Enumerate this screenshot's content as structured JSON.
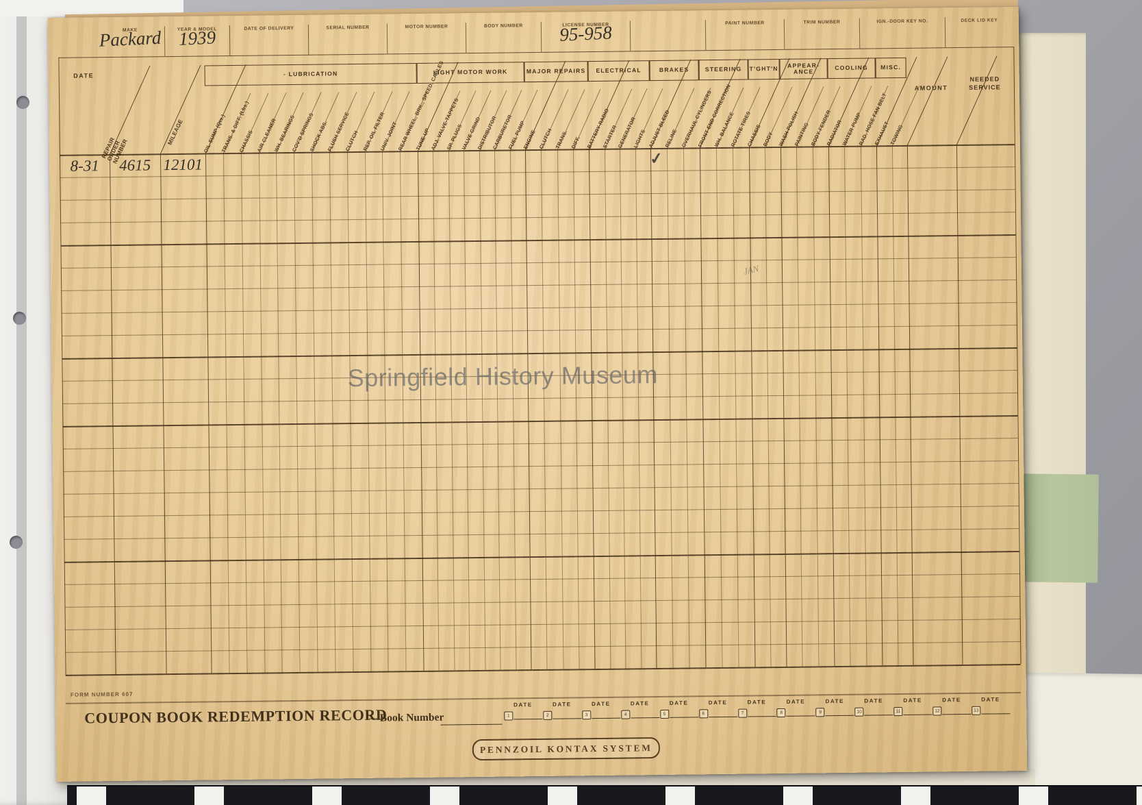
{
  "document": {
    "watermark": "Springfield History Museum",
    "form_number": "FORM NUMBER 607",
    "colors": {
      "card": "#e9cd9a",
      "ink": "#4f351a"
    },
    "top_fields": [
      {
        "label": "MAKE",
        "value": "Packard"
      },
      {
        "label": "YEAR & MODEL",
        "value": "1939"
      },
      {
        "label": "DATE OF DELIVERY",
        "value": ""
      },
      {
        "label": "SERIAL NUMBER",
        "value": ""
      },
      {
        "label": "MOTOR NUMBER",
        "value": ""
      },
      {
        "label": "BODY NUMBER",
        "value": ""
      },
      {
        "label": "LICENSE NUMBER",
        "value": "95-958"
      },
      {
        "label": "",
        "value": ""
      },
      {
        "label": "PAINT NUMBER",
        "value": ""
      },
      {
        "label": "TRIM NUMBER",
        "value": ""
      },
      {
        "label": "IGN.-DOOR KEY NO.",
        "value": ""
      },
      {
        "label": "DECK LID KEY",
        "value": ""
      }
    ],
    "table": {
      "left_columns": [
        "DATE",
        "REPAIR ORDER NUMBER",
        "MILEAGE"
      ],
      "sections": [
        {
          "title": "- LUBRICATION",
          "columns": [
            "OIL-SUMP (Qts.)",
            "TRANS. & DIFF. (Lbs.)",
            "CHASSIS",
            "AIR CLEANER",
            "WH. BEARINGS",
            "COV'D SPRINGS",
            "SHOCK ABS.",
            "FLUSH SERVICE",
            "CLUTCH",
            "REP. OIL FILTER",
            "UNIV. JOINT",
            "REAR WHEEL, BRK., SPEED. CABLES"
          ]
        },
        {
          "title": "LIGHT MOTOR WORK",
          "columns": [
            "TUNE-UP",
            "ADJ. VALVE-TAPPETS",
            "SP. PLUGS",
            "VALVE GRIND",
            "DISTRIBUTOR",
            "CARBURETOR",
            "FUEL PUMP"
          ]
        },
        {
          "title": "MAJOR REPAIRS",
          "columns": [
            "ENGINE",
            "CLUTCH",
            "TRANS.",
            "DIFF."
          ]
        },
        {
          "title": "ELECTRICAL",
          "columns": [
            "BATTERY-RADIO",
            "STARTER",
            "GENERATOR",
            "LIGHTS"
          ]
        },
        {
          "title": "BRAKES",
          "columns": [
            "ADJUST-BLEED",
            "RELINE",
            "OVERHAUL CYLINDERS"
          ]
        },
        {
          "title": "STEERING",
          "columns": [
            "FRONT END CORRECTION",
            "WH. BALANCE",
            "ROTATE TIRES"
          ]
        },
        {
          "title": "T'GHT'N",
          "columns": [
            "CHASSIS",
            "BODY"
          ]
        },
        {
          "title": "APPEAR-ANCE",
          "columns": [
            "WASH-POLISH",
            "PAINTING",
            "BODY-FENDER"
          ]
        },
        {
          "title": "COOLING",
          "columns": [
            "RADIATOR",
            "WATER PUMP",
            "RAD. HOSE FAN BELT"
          ]
        },
        {
          "title": "MISC.",
          "columns": [
            "EXHAUST",
            "TOWING"
          ]
        }
      ],
      "right_columns": [
        "AMOUNT",
        "NEEDED SERVICE"
      ],
      "row_count": 23,
      "entries": [
        {
          "date": "8-31",
          "repair_order": "4615",
          "mileage": "12101",
          "checked_section_title": "BRAKES",
          "checked_column": "ADJUST-BLEED",
          "check_glyph": "✓"
        }
      ],
      "pencil_note": "JAN"
    },
    "footer": {
      "coupon_title": "COUPON BOOK REDEMPTION RECORD",
      "book_number_label": "—Book Number",
      "date_label": "DATE",
      "slot_numbers": [
        "1",
        "2",
        "3",
        "4",
        "5",
        "6",
        "7",
        "8",
        "9",
        "10",
        "11",
        "12",
        "13"
      ],
      "logo": "PENNZOIL KONTAX SYSTEM"
    }
  }
}
